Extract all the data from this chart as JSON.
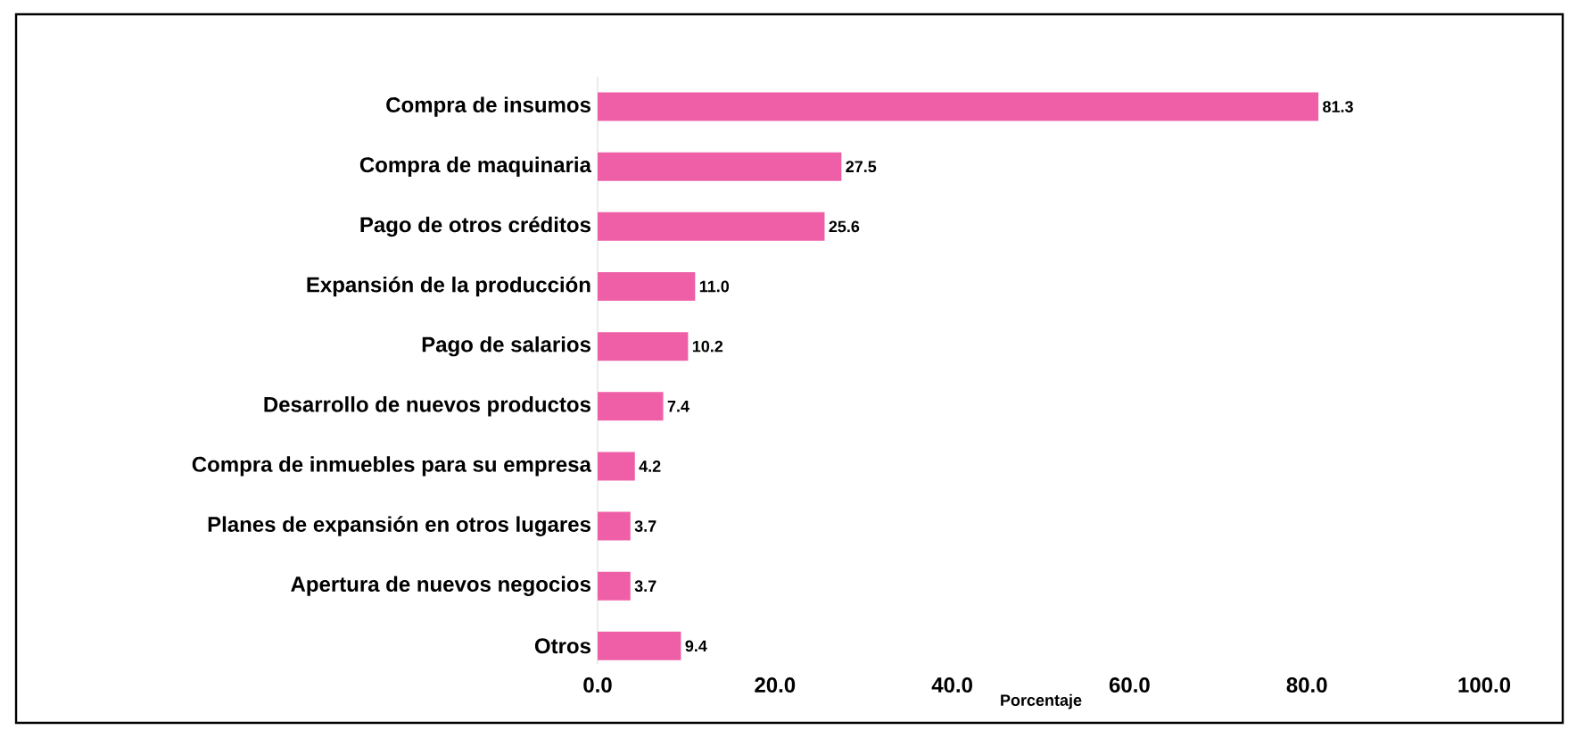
{
  "chart_data": {
    "type": "bar",
    "orientation": "horizontal",
    "xlabel": "Porcentaje",
    "categories": [
      "Compra de insumos",
      "Compra de maquinaria",
      "Pago de otros créditos",
      "Expansión de la producción",
      "Pago de salarios",
      "Desarrollo de nuevos productos",
      "Compra de inmuebles para su empresa",
      "Planes de expansión en otros lugares",
      "Apertura de nuevos negocios",
      "Otros"
    ],
    "values": [
      81.3,
      27.5,
      25.6,
      11.0,
      10.2,
      7.4,
      4.2,
      3.7,
      3.7,
      9.4
    ],
    "value_labels": [
      "81.3",
      "27.5",
      "25.6",
      "11.0",
      "10.2",
      "7.4",
      "4.2",
      "3.7",
      "3.7",
      "9.4"
    ],
    "color": "#ef5fa7",
    "xlim": [
      0,
      100
    ],
    "xticks": [
      {
        "value": 0,
        "label": "0.0"
      },
      {
        "value": 20,
        "label": "20.0"
      },
      {
        "value": 40,
        "label": "40.0"
      },
      {
        "value": 60,
        "label": "60.0"
      },
      {
        "value": 80,
        "label": "80.0"
      },
      {
        "value": 100,
        "label": "100.0"
      }
    ],
    "grid": false
  }
}
